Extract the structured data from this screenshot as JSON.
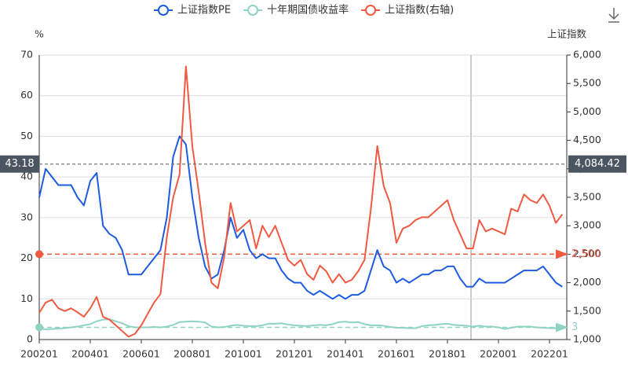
{
  "chart_data": {
    "type": "line",
    "y_axis_label": "%",
    "y2_axis_label": "上证指数",
    "categories": [
      "200201",
      null,
      null,
      null,
      null,
      null,
      null,
      null,
      "200401",
      null,
      null,
      null,
      null,
      null,
      null,
      null,
      "200601",
      null,
      null,
      null,
      null,
      null,
      null,
      null,
      "200801",
      null,
      null,
      null,
      null,
      null,
      null,
      null,
      "201001",
      null,
      null,
      null,
      null,
      null,
      null,
      null,
      "201201",
      null,
      null,
      null,
      null,
      null,
      null,
      null,
      "201401",
      null,
      null,
      null,
      null,
      null,
      null,
      null,
      "201601",
      null,
      null,
      null,
      null,
      null,
      null,
      null,
      "201801",
      null,
      null,
      null,
      null,
      null,
      null,
      null,
      "202001",
      null,
      null,
      null,
      null,
      null,
      null,
      null,
      "202201",
      null,
      null
    ],
    "series": [
      {
        "name": "上证指数PE",
        "color": "#1d5be0",
        "axis": "y",
        "values": [
          35,
          42,
          40,
          38,
          38,
          38,
          35,
          33,
          39,
          41,
          28,
          26,
          25,
          22,
          16,
          16,
          16,
          18,
          20,
          22,
          30,
          45,
          50,
          48,
          35,
          25,
          18,
          15,
          16,
          22,
          30,
          25,
          27,
          22,
          20,
          21,
          20,
          20,
          17,
          15,
          14,
          14,
          12,
          11,
          12,
          11,
          10,
          11,
          10,
          11,
          11,
          12,
          17,
          22,
          18,
          17,
          14,
          15,
          14,
          15,
          16,
          16,
          17,
          17,
          18,
          18,
          15,
          13,
          13,
          15,
          14,
          14,
          14,
          14,
          15,
          16,
          17,
          17,
          17,
          18,
          16,
          14,
          13
        ]
      },
      {
        "name": "十年期国债收益率",
        "color": "#8fd3c3",
        "axis": "y",
        "values": [
          2.8,
          2.5,
          2.6,
          2.7,
          2.8,
          3.0,
          3.2,
          3.5,
          3.8,
          4.5,
          4.9,
          5.0,
          4.5,
          4.0,
          3.3,
          3.0,
          3.0,
          3.0,
          3.1,
          3.0,
          3.2,
          3.6,
          4.3,
          4.4,
          4.5,
          4.4,
          4.2,
          3.2,
          3.0,
          3.1,
          3.4,
          3.6,
          3.4,
          3.3,
          3.3,
          3.5,
          3.9,
          3.9,
          4.0,
          3.7,
          3.5,
          3.4,
          3.3,
          3.5,
          3.6,
          3.5,
          3.8,
          4.3,
          4.4,
          4.2,
          4.3,
          3.8,
          3.5,
          3.5,
          3.4,
          3.1,
          2.9,
          2.9,
          2.8,
          2.8,
          3.3,
          3.5,
          3.6,
          3.8,
          3.9,
          3.6,
          3.5,
          3.4,
          3.2,
          3.4,
          3.2,
          3.2,
          3.0,
          2.6,
          2.9,
          3.2,
          3.2,
          3.2,
          3.0,
          2.9,
          2.8,
          2.8,
          2.7
        ]
      },
      {
        "name": "上证指数(右轴)",
        "color": "#f05a40",
        "axis": "y2",
        "values": [
          1470,
          1650,
          1700,
          1550,
          1500,
          1550,
          1480,
          1400,
          1550,
          1750,
          1400,
          1350,
          1250,
          1150,
          1050,
          1100,
          1250,
          1450,
          1650,
          1800,
          2800,
          3500,
          3900,
          5800,
          4400,
          3600,
          2700,
          2000,
          1900,
          2450,
          3400,
          2900,
          3000,
          3100,
          2600,
          3000,
          2800,
          3000,
          2700,
          2400,
          2300,
          2400,
          2150,
          2050,
          2300,
          2200,
          2000,
          2150,
          2000,
          2050,
          2200,
          2400,
          3300,
          4400,
          3700,
          3400,
          2700,
          2950,
          3000,
          3100,
          3150,
          3150,
          3250,
          3350,
          3450,
          3100,
          2850,
          2600,
          2600,
          3100,
          2900,
          2950,
          2900,
          2850,
          3300,
          3250,
          3550,
          3450,
          3400,
          3550,
          3350,
          3050,
          3200
        ]
      }
    ],
    "ylim": [
      0,
      70
    ],
    "yticks": [
      0,
      10,
      20,
      30,
      40,
      50,
      60,
      70
    ],
    "y2lim": [
      1000,
      6000
    ],
    "y2ticks": [
      {
        "value": 1000,
        "label": "1,000"
      },
      {
        "value": 1500,
        "label": "1,500"
      },
      {
        "value": 2000,
        "label": "2,000"
      },
      {
        "value": 2500,
        "label": "2,500"
      },
      {
        "value": 3000,
        "label": "3,000"
      },
      {
        "value": 3500,
        "label": "3,500"
      },
      {
        "value": 4000,
        "label": "4,000"
      },
      {
        "value": 4500,
        "label": "4,500"
      },
      {
        "value": 5000,
        "label": "5,000"
      },
      {
        "value": 5500,
        "label": "5,500"
      },
      {
        "value": 6000,
        "label": "6,000"
      }
    ],
    "grid": true,
    "mark_lines": [
      {
        "axis": "y2",
        "value": 2500,
        "label": "2,500",
        "color": "#f05a40"
      },
      {
        "axis": "y",
        "value": 3,
        "label": "3",
        "color": "#8fd3c3"
      }
    ],
    "crosshair": {
      "y": 43.18,
      "y_label": "43.18",
      "y2": 4084.42,
      "y2_label": "4,084.42"
    }
  }
}
